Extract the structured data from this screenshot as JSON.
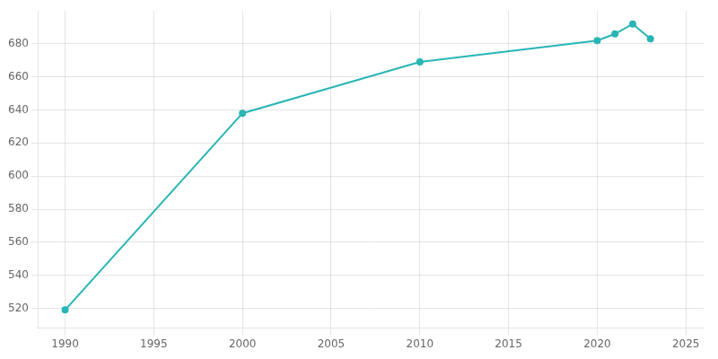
{
  "chart_data": {
    "type": "line",
    "x": [
      1990,
      2000,
      2010,
      2020,
      2021,
      2022,
      2023
    ],
    "values": [
      519,
      638,
      669,
      682,
      686,
      692,
      683
    ],
    "color": "#2ab5b5",
    "xlim": [
      1988.5,
      2026
    ],
    "ylim": [
      508,
      700
    ],
    "xticks": [
      1990,
      1995,
      2000,
      2005,
      2010,
      2015,
      2020,
      2025
    ],
    "yticks": [
      520,
      540,
      560,
      580,
      600,
      620,
      640,
      660,
      680
    ],
    "grid": true
  }
}
